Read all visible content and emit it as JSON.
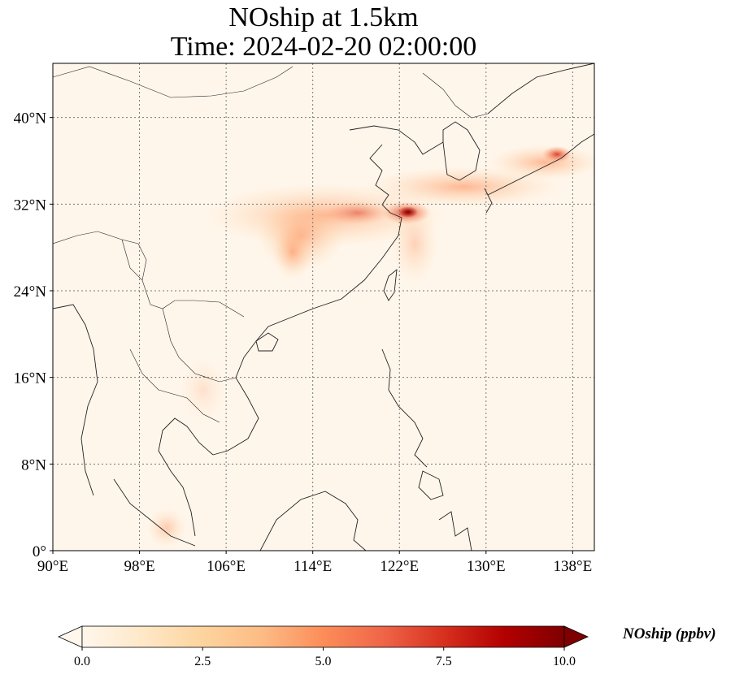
{
  "title": {
    "line1": "NOship at 1.5km",
    "line2": "Time: 2024-02-20 02:00:00"
  },
  "map": {
    "type": "heatmap",
    "lon_range": [
      90,
      140
    ],
    "lat_range": [
      0,
      45
    ],
    "lon_ticks": [
      {
        "value": 90,
        "label": "90°E"
      },
      {
        "value": 98,
        "label": "98°E"
      },
      {
        "value": 106,
        "label": "106°E"
      },
      {
        "value": 114,
        "label": "114°E"
      },
      {
        "value": 122,
        "label": "122°E"
      },
      {
        "value": 130,
        "label": "130°E"
      },
      {
        "value": 138,
        "label": "138°E"
      }
    ],
    "lat_ticks": [
      {
        "value": 0,
        "label": "0°"
      },
      {
        "value": 8,
        "label": "8°N"
      },
      {
        "value": 16,
        "label": "16°N"
      },
      {
        "value": 24,
        "label": "24°N"
      },
      {
        "value": 32,
        "label": "32°N"
      },
      {
        "value": 40,
        "label": "40°N"
      }
    ],
    "gridlines": true,
    "colormap": "OrRd",
    "hotspots": [
      {
        "lon": 122.5,
        "lat": 31.3,
        "value": 9.5
      },
      {
        "lon": 116.5,
        "lat": 31.8,
        "value": 4.0
      },
      {
        "lon": 113.5,
        "lat": 29.5,
        "value": 3.0
      },
      {
        "lon": 112.5,
        "lat": 27.5,
        "value": 2.5
      },
      {
        "lon": 127.0,
        "lat": 33.5,
        "value": 3.0
      },
      {
        "lon": 135.0,
        "lat": 35.0,
        "value": 4.0
      },
      {
        "lon": 137.0,
        "lat": 36.5,
        "value": 5.5
      },
      {
        "lon": 120.0,
        "lat": 29.0,
        "value": 2.0
      },
      {
        "lon": 100.0,
        "lat": 3.0,
        "value": 2.0
      }
    ]
  },
  "colorbar": {
    "label": "NOship (ppbv)",
    "min": 0.0,
    "max": 10.0,
    "extend": "both",
    "ticks": [
      "0.0",
      "2.5",
      "5.0",
      "7.5",
      "10.0"
    ],
    "colors": [
      "#fff7ec",
      "#fee8c8",
      "#fdd49e",
      "#fdbb84",
      "#fc8d59",
      "#ef6548",
      "#d7301f",
      "#b30000",
      "#7f0000"
    ]
  }
}
